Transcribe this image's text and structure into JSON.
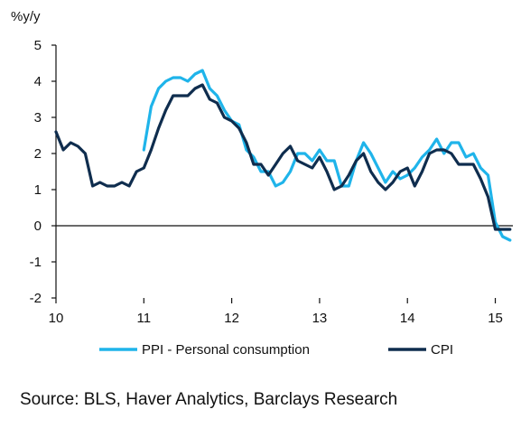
{
  "chart_data": {
    "type": "line",
    "y_unit_label": "%y/y",
    "ylim": [
      -2,
      5
    ],
    "y_ticks": [
      -2,
      -1,
      0,
      1,
      2,
      3,
      4,
      5
    ],
    "xlim": [
      10,
      15.2
    ],
    "x_ticks": [
      10,
      11,
      12,
      13,
      14,
      15
    ],
    "x_tick_labels": [
      "10",
      "11",
      "12",
      "13",
      "14",
      "15"
    ],
    "grid": false,
    "legend_position": "bottom",
    "series": [
      {
        "name": "PPI - Personal consumption",
        "color": "#1fb4ea",
        "x": [
          11.0,
          11.083,
          11.167,
          11.25,
          11.333,
          11.417,
          11.5,
          11.583,
          11.667,
          11.75,
          11.833,
          11.917,
          12.0,
          12.083,
          12.167,
          12.25,
          12.333,
          12.417,
          12.5,
          12.583,
          12.667,
          12.75,
          12.833,
          12.917,
          13.0,
          13.083,
          13.167,
          13.25,
          13.333,
          13.417,
          13.5,
          13.583,
          13.667,
          13.75,
          13.833,
          13.917,
          14.0,
          14.083,
          14.167,
          14.25,
          14.333,
          14.417,
          14.5,
          14.583,
          14.667,
          14.75,
          14.833,
          14.917,
          15.0,
          15.083,
          15.167
        ],
        "y": [
          2.1,
          3.3,
          3.8,
          4.0,
          4.1,
          4.1,
          4.0,
          4.2,
          4.3,
          3.8,
          3.6,
          3.2,
          2.9,
          2.8,
          2.1,
          1.9,
          1.5,
          1.5,
          1.1,
          1.2,
          1.5,
          2.0,
          2.0,
          1.8,
          2.1,
          1.8,
          1.8,
          1.1,
          1.1,
          1.8,
          2.3,
          2.0,
          1.6,
          1.2,
          1.5,
          1.3,
          1.4,
          1.6,
          1.9,
          2.1,
          2.4,
          2.0,
          2.3,
          2.3,
          1.9,
          2.0,
          1.6,
          1.4,
          0.1,
          -0.3,
          -0.4
        ]
      },
      {
        "name": "CPI",
        "color": "#0f2d4e",
        "x": [
          10.0,
          10.083,
          10.167,
          10.25,
          10.333,
          10.417,
          10.5,
          10.583,
          10.667,
          10.75,
          10.833,
          10.917,
          11.0,
          11.083,
          11.167,
          11.25,
          11.333,
          11.417,
          11.5,
          11.583,
          11.667,
          11.75,
          11.833,
          11.917,
          12.0,
          12.083,
          12.167,
          12.25,
          12.333,
          12.417,
          12.5,
          12.583,
          12.667,
          12.75,
          12.833,
          12.917,
          13.0,
          13.083,
          13.167,
          13.25,
          13.333,
          13.417,
          13.5,
          13.583,
          13.667,
          13.75,
          13.833,
          13.917,
          14.0,
          14.083,
          14.167,
          14.25,
          14.333,
          14.417,
          14.5,
          14.583,
          14.667,
          14.75,
          14.833,
          14.917,
          15.0,
          15.083,
          15.167
        ],
        "y": [
          2.6,
          2.1,
          2.3,
          2.2,
          2.0,
          1.1,
          1.2,
          1.1,
          1.1,
          1.2,
          1.1,
          1.5,
          1.6,
          2.1,
          2.7,
          3.2,
          3.6,
          3.6,
          3.6,
          3.8,
          3.9,
          3.5,
          3.4,
          3.0,
          2.9,
          2.7,
          2.3,
          1.7,
          1.7,
          1.4,
          1.7,
          2.0,
          2.2,
          1.8,
          1.7,
          1.6,
          1.9,
          1.5,
          1.0,
          1.1,
          1.4,
          1.8,
          2.0,
          1.5,
          1.2,
          1.0,
          1.2,
          1.5,
          1.6,
          1.1,
          1.5,
          2.0,
          2.1,
          2.1,
          2.0,
          1.7,
          1.7,
          1.7,
          1.3,
          0.8,
          -0.1,
          -0.1,
          -0.1
        ]
      }
    ]
  },
  "legend": {
    "items": [
      {
        "label": "PPI - Personal consumption",
        "color": "#1fb4ea"
      },
      {
        "label": "CPI",
        "color": "#0f2d4e"
      }
    ]
  },
  "source": "Source: BLS, Haver Analytics, Barclays Research"
}
